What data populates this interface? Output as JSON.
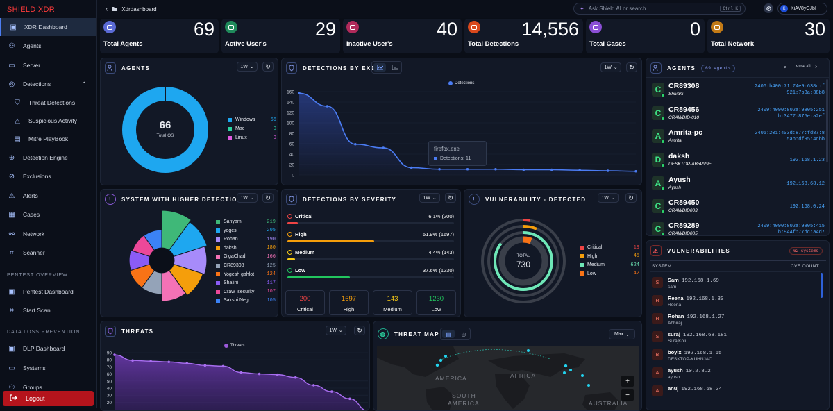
{
  "brand": "SHIELD XDR",
  "sidebar": {
    "items": [
      {
        "label": "XDR Dashboard",
        "icon": "dashboard-icon"
      },
      {
        "label": "Agents",
        "icon": "users-icon"
      },
      {
        "label": "Server",
        "icon": "server-icon"
      },
      {
        "label": "Detections",
        "icon": "radar-icon"
      },
      {
        "label": "Threat Detections",
        "icon": "shield-icon"
      },
      {
        "label": "Suspicious Activity",
        "icon": "warning-icon"
      },
      {
        "label": "Mitre PlayBook",
        "icon": "book-icon"
      },
      {
        "label": "Detection Engine",
        "icon": "crosshair-icon"
      },
      {
        "label": "Exclusions",
        "icon": "ban-icon"
      },
      {
        "label": "Alerts",
        "icon": "alert-icon"
      },
      {
        "label": "Cases",
        "icon": "briefcase-icon"
      },
      {
        "label": "Network",
        "icon": "network-icon"
      },
      {
        "label": "Scanner",
        "icon": "scanner-icon"
      },
      {
        "label": "Pentest Dashboard",
        "icon": "dashboard-icon"
      },
      {
        "label": "Start Scan",
        "icon": "scan-icon"
      },
      {
        "label": "DLP Dashboard",
        "icon": "dashboard-icon"
      },
      {
        "label": "Systems",
        "icon": "monitor-icon"
      },
      {
        "label": "Groups",
        "icon": "group-icon"
      }
    ],
    "sections": [
      "PENTEST OVERVIEW",
      "DATA LOSS PREVENTION"
    ],
    "logout": "Logout"
  },
  "topbar": {
    "breadcrumb": "Xdrdashboard",
    "search_placeholder": "Ask Shield AI or search...",
    "shortcut": "Ctrl K",
    "user_initial": "K",
    "user_name": "KiAV8yCJbI"
  },
  "stats": [
    {
      "label": "Total Agents",
      "value": "69",
      "color": "#5b6bd6"
    },
    {
      "label": "Active User's",
      "value": "29",
      "color": "#1f8a5b"
    },
    {
      "label": "Inactive User's",
      "value": "40",
      "color": "#b02a5a"
    },
    {
      "label": "Total Detections",
      "value": "14,556",
      "color": "#d9481c"
    },
    {
      "label": "Total Cases",
      "value": "0",
      "color": "#8b4fd6"
    },
    {
      "label": "Total Network",
      "value": "30",
      "color": "#c27a16"
    }
  ],
  "agents_panel": {
    "title": "AGENTS",
    "range": "1W",
    "center_value": "66",
    "center_label": "Total OS",
    "legend": [
      {
        "name": "Windows",
        "value": 66,
        "color": "#1ea7f0"
      },
      {
        "name": "Mac",
        "value": 0,
        "color": "#2bd4a0"
      },
      {
        "name": "Linux",
        "value": 0,
        "color": "#e05ae0"
      }
    ]
  },
  "detections_exe": {
    "title": "DETECTIONS BY EXE",
    "range": "1W",
    "legend": "Detections",
    "tooltip_title": "firefox.exe",
    "tooltip_value": "Detections: 11",
    "chart_data": {
      "type": "line",
      "series": [
        {
          "name": "Detections",
          "values": [
            157,
            132,
            59,
            52,
            14,
            11,
            11,
            11,
            10,
            10,
            9,
            8,
            7
          ]
        }
      ],
      "ylim": [
        0,
        160
      ],
      "yticks": [
        "160",
        "140",
        "120",
        "100",
        "80",
        "60",
        "40",
        "20",
        "0"
      ]
    }
  },
  "higher_detections": {
    "title": "SYSTEM WITH HIGHER DETECTIONS",
    "range": "1W",
    "items": [
      {
        "name": "Sanyam",
        "value": 219,
        "color": "#3fb878"
      },
      {
        "name": "yoges",
        "value": 205,
        "color": "#1ea7f0"
      },
      {
        "name": "Rohan",
        "value": 190,
        "color": "#a78bfa"
      },
      {
        "name": "daksh",
        "value": 180,
        "color": "#f59e0b"
      },
      {
        "name": "GigaChad",
        "value": 166,
        "color": "#f472b6"
      },
      {
        "name": "CR89308",
        "value": 125,
        "color": "#94a3b8"
      },
      {
        "name": "Yogesh gahlot",
        "value": 124,
        "color": "#f97316"
      },
      {
        "name": "Shalini",
        "value": 117,
        "color": "#8b5cf6"
      },
      {
        "name": "Craw_security",
        "value": 107,
        "color": "#ec4899"
      },
      {
        "name": "Sakshi Negi",
        "value": 105,
        "color": "#3b82f6"
      }
    ]
  },
  "severity": {
    "title": "DETECTIONS BY SEVERITY",
    "range": "1W",
    "rows": [
      {
        "name": "Critical",
        "pct": "6.1% (200)",
        "fill": 0.061,
        "color": "#ef4444"
      },
      {
        "name": "High",
        "pct": "51.9% (1697)",
        "fill": 0.519,
        "color": "#f59e0b"
      },
      {
        "name": "Medium",
        "pct": "4.4% (143)",
        "fill": 0.044,
        "color": "#facc15"
      },
      {
        "name": "Low",
        "pct": "37.6% (1230)",
        "fill": 0.376,
        "color": "#22c55e"
      }
    ],
    "boxes": [
      {
        "value": "200",
        "label": "Critical",
        "color": "#ef4444"
      },
      {
        "value": "1697",
        "label": "High",
        "color": "#f59e0b"
      },
      {
        "value": "143",
        "label": "Medium",
        "color": "#facc15"
      },
      {
        "value": "1230",
        "label": "Low",
        "color": "#22c55e"
      }
    ]
  },
  "vuln_detected": {
    "title": "VULNERABILITY - DETECTED",
    "range": "1W",
    "center_label": "TOTAL",
    "center_value": "730",
    "legend": [
      {
        "name": "Critical",
        "value": 19,
        "color": "#ef4444"
      },
      {
        "name": "High",
        "value": 45,
        "color": "#f59e0b"
      },
      {
        "name": "Medium",
        "value": 624,
        "color": "#6ee7b7"
      },
      {
        "name": "Low",
        "value": 42,
        "color": "#f97316"
      }
    ]
  },
  "threats": {
    "title": "THREATS",
    "range": "1W",
    "legend": "Threats",
    "chart_data": {
      "type": "area",
      "series": [
        {
          "name": "Threats",
          "values": [
            87,
            79,
            78,
            77,
            75,
            72,
            71,
            62,
            60,
            59,
            55,
            44,
            35,
            25,
            8
          ]
        }
      ],
      "ylim": [
        0,
        90
      ],
      "yticks": [
        "90",
        "80",
        "70",
        "60",
        "50",
        "40",
        "30",
        "20"
      ]
    }
  },
  "threat_map": {
    "title": "THREAT MAP",
    "range": "Max",
    "labels": [
      "AMERICA",
      "AFRICA",
      "SOUTH",
      "AMERICA",
      "AUSTRALIA"
    ]
  },
  "agents_list": {
    "title": "AGENTS",
    "badge": "69 agents",
    "viewall": "View all",
    "rows": [
      {
        "letter": "C",
        "name": "CR89308",
        "sub": "Shivani",
        "ip": [
          "2406:b400:71:74e9:638d:f",
          "921:7b3a:38b8"
        ]
      },
      {
        "letter": "C",
        "name": "CR89456",
        "sub": "CRAWDID-010",
        "ip": [
          "2409:4090:802a:9805:251",
          "b:3477:875e:a2ef"
        ]
      },
      {
        "letter": "A",
        "name": "Amrita-pc",
        "sub": "Amrita",
        "ip": [
          "2405:201:403d:877:fd87:8",
          "5ab:df95:4cbb"
        ]
      },
      {
        "letter": "D",
        "name": "daksh",
        "sub": "DESKTOP-AB5PV9E",
        "ip": [
          "192.168.1.23"
        ]
      },
      {
        "letter": "A",
        "name": "Ayush",
        "sub": "Ayush",
        "ip": [
          "192.168.68.12"
        ]
      },
      {
        "letter": "C",
        "name": "CR89450",
        "sub": "CRAWDID003",
        "ip": [
          "192.168.0.24"
        ]
      },
      {
        "letter": "C",
        "name": "CR89289",
        "sub": "CRAWDID005",
        "ip": [
          "2409:4090:802a:9805:415",
          "b:944f:77dc:a4d7"
        ]
      }
    ]
  },
  "vulnerabilities": {
    "title": "VULNERABILITIES",
    "badge": "62 systems",
    "col_system": "SYSTEM",
    "col_cve": "CVE COUNT",
    "rows": [
      {
        "letter": "S",
        "name": "Sam",
        "ip": "192.168.1.69",
        "sub": "sam"
      },
      {
        "letter": "R",
        "name": "Reena",
        "ip": "192.168.1.30",
        "sub": "Reena"
      },
      {
        "letter": "R",
        "name": "Rohan",
        "ip": "192.168.1.27",
        "sub": "Abhiraj"
      },
      {
        "letter": "S",
        "name": "suraj",
        "ip": "192.168.68.181",
        "sub": "SurajKoli"
      },
      {
        "letter": "B",
        "name": "boyix",
        "ip": "192.168.1.65",
        "sub": "DESKTOP-KUHNJAC"
      },
      {
        "letter": "A",
        "name": "ayush",
        "ip": "10.2.8.2",
        "sub": "ayush"
      },
      {
        "letter": "A",
        "name": "anuj",
        "ip": "192.168.68.24",
        "sub": ""
      }
    ]
  }
}
